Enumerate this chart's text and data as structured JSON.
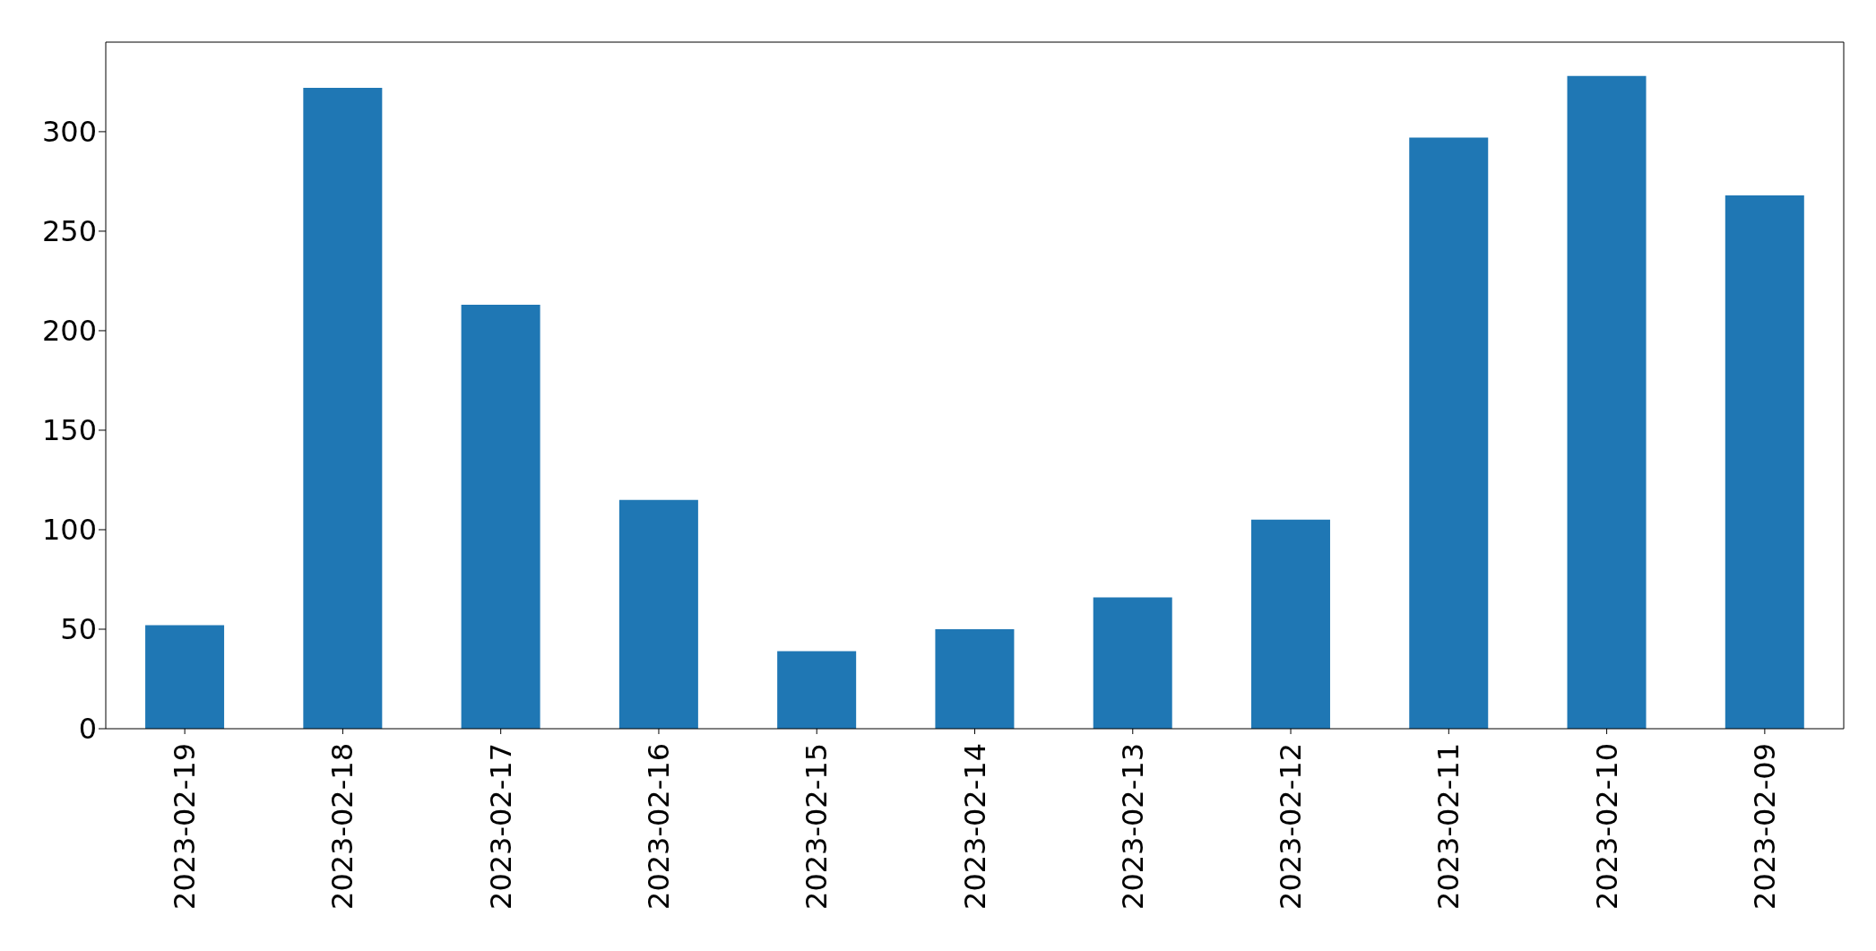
{
  "chart_data": {
    "type": "bar",
    "categories": [
      "2023-02-19",
      "2023-02-18",
      "2023-02-17",
      "2023-02-16",
      "2023-02-15",
      "2023-02-14",
      "2023-02-13",
      "2023-02-12",
      "2023-02-11",
      "2023-02-10",
      "2023-02-09"
    ],
    "values": [
      52,
      322,
      213,
      115,
      39,
      50,
      66,
      105,
      297,
      328,
      268
    ],
    "color": "#1f77b4",
    "ylim": [
      0,
      345
    ],
    "yticks": [
      0,
      50,
      100,
      150,
      200,
      250,
      300
    ],
    "grid": false
  }
}
